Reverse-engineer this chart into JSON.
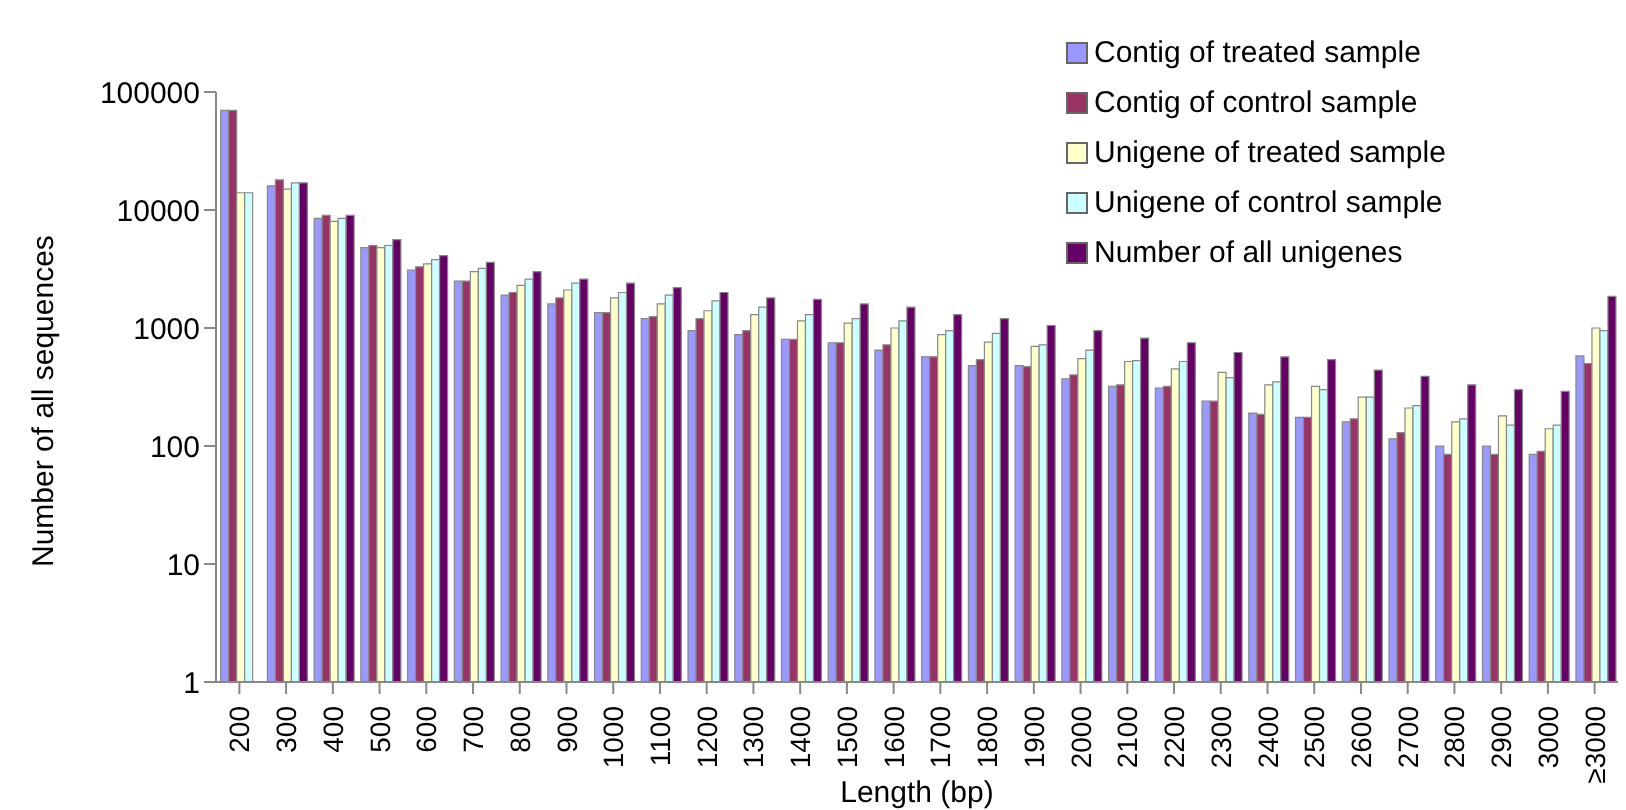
{
  "chart_data": {
    "type": "bar",
    "xlabel": "Length (bp)",
    "ylabel": "Number of all sequences",
    "categories": [
      "200",
      "300",
      "400",
      "500",
      "600",
      "700",
      "800",
      "900",
      "1000",
      "1100",
      "1200",
      "1300",
      "1400",
      "1500",
      "1600",
      "1700",
      "1800",
      "1900",
      "2000",
      "2100",
      "2200",
      "2300",
      "2400",
      "2500",
      "2600",
      "2700",
      "2800",
      "2900",
      "3000",
      "≥3000"
    ],
    "series": [
      {
        "name": "Contig of treated sample",
        "color": "#9999ff",
        "values": [
          70000,
          16000,
          8500,
          4800,
          3100,
          2500,
          1900,
          1600,
          1350,
          1200,
          950,
          880,
          800,
          750,
          650,
          570,
          480,
          480,
          370,
          320,
          310,
          240,
          190,
          175,
          160,
          115,
          100,
          100,
          85,
          580
        ]
      },
      {
        "name": "Contig of control sample",
        "color": "#993366",
        "values": [
          70000,
          18000,
          9000,
          5000,
          3300,
          2500,
          2000,
          1800,
          1350,
          1250,
          1200,
          950,
          800,
          750,
          720,
          570,
          540,
          470,
          400,
          330,
          320,
          240,
          185,
          175,
          170,
          130,
          85,
          85,
          90,
          500
        ]
      },
      {
        "name": "Unigene of treated sample",
        "color": "#ffffcc",
        "values": [
          14000,
          15000,
          8000,
          4800,
          3500,
          3000,
          2300,
          2100,
          1800,
          1600,
          1400,
          1300,
          1150,
          1100,
          1000,
          880,
          760,
          700,
          550,
          520,
          450,
          420,
          330,
          320,
          260,
          210,
          160,
          180,
          140,
          1000
        ]
      },
      {
        "name": "Unigene of control sample",
        "color": "#ccffff",
        "values": [
          14000,
          17000,
          8500,
          5000,
          3800,
          3200,
          2600,
          2400,
          2000,
          1900,
          1700,
          1500,
          1300,
          1200,
          1150,
          950,
          900,
          720,
          650,
          530,
          520,
          380,
          350,
          300,
          260,
          220,
          170,
          150,
          150,
          950
        ]
      },
      {
        "name": "Number of all unigenes",
        "color": "#660066",
        "values": [
          null,
          17000,
          9000,
          5600,
          4100,
          3600,
          3000,
          2600,
          2400,
          2200,
          2000,
          1800,
          1750,
          1600,
          1500,
          1300,
          1200,
          1050,
          950,
          820,
          750,
          620,
          570,
          540,
          440,
          390,
          330,
          300,
          290,
          1850
        ]
      }
    ],
    "log": true,
    "ylim": [
      1,
      100000
    ],
    "yticks": [
      1,
      10,
      100,
      1000,
      10000,
      100000
    ],
    "grid": false,
    "legend": "top right"
  }
}
